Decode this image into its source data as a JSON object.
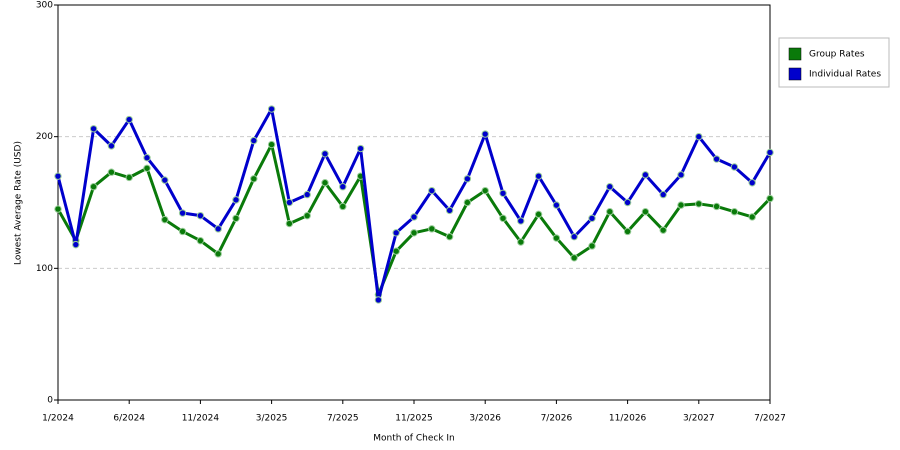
{
  "chart_data": {
    "type": "line",
    "x_label": "Month of Check In",
    "y_label": "Lowest Average Rate (USD)",
    "categories": [
      "1/2024",
      null,
      null,
      null,
      "6/2024",
      null,
      null,
      null,
      "11/2024",
      null,
      null,
      null,
      "3/2025",
      null,
      null,
      null,
      "7/2025",
      null,
      null,
      null,
      "11/2025",
      null,
      null,
      null,
      "3/2026",
      null,
      null,
      null,
      "7/2026",
      null,
      null,
      null,
      "11/2026",
      null,
      null,
      null,
      "3/2027",
      null,
      null,
      null,
      "7/2027"
    ],
    "series": [
      {
        "name": "Group Rates",
        "color": "#0a7a0a",
        "values": [
          145,
          121,
          162,
          173,
          169,
          176,
          137,
          128,
          121,
          111,
          138,
          168,
          194,
          134,
          140,
          165,
          147,
          170,
          80,
          113,
          127,
          130,
          124,
          150,
          159,
          138,
          120,
          141,
          123,
          108,
          117,
          143,
          128,
          143,
          129,
          148,
          149,
          147,
          143,
          139,
          153
        ]
      },
      {
        "name": "Individual Rates",
        "color": "#0000cc",
        "values": [
          170,
          118,
          206,
          193,
          213,
          184,
          167,
          142,
          140,
          130,
          152,
          197,
          221,
          150,
          156,
          187,
          162,
          191,
          76,
          127,
          139,
          159,
          144,
          168,
          202,
          157,
          136,
          170,
          148,
          124,
          138,
          162,
          150,
          171,
          156,
          171,
          200,
          183,
          177,
          165,
          188
        ]
      }
    ],
    "ylim": [
      0,
      300
    ],
    "yticks": [
      0,
      100,
      200,
      300
    ],
    "grid": true,
    "legend": "right"
  }
}
